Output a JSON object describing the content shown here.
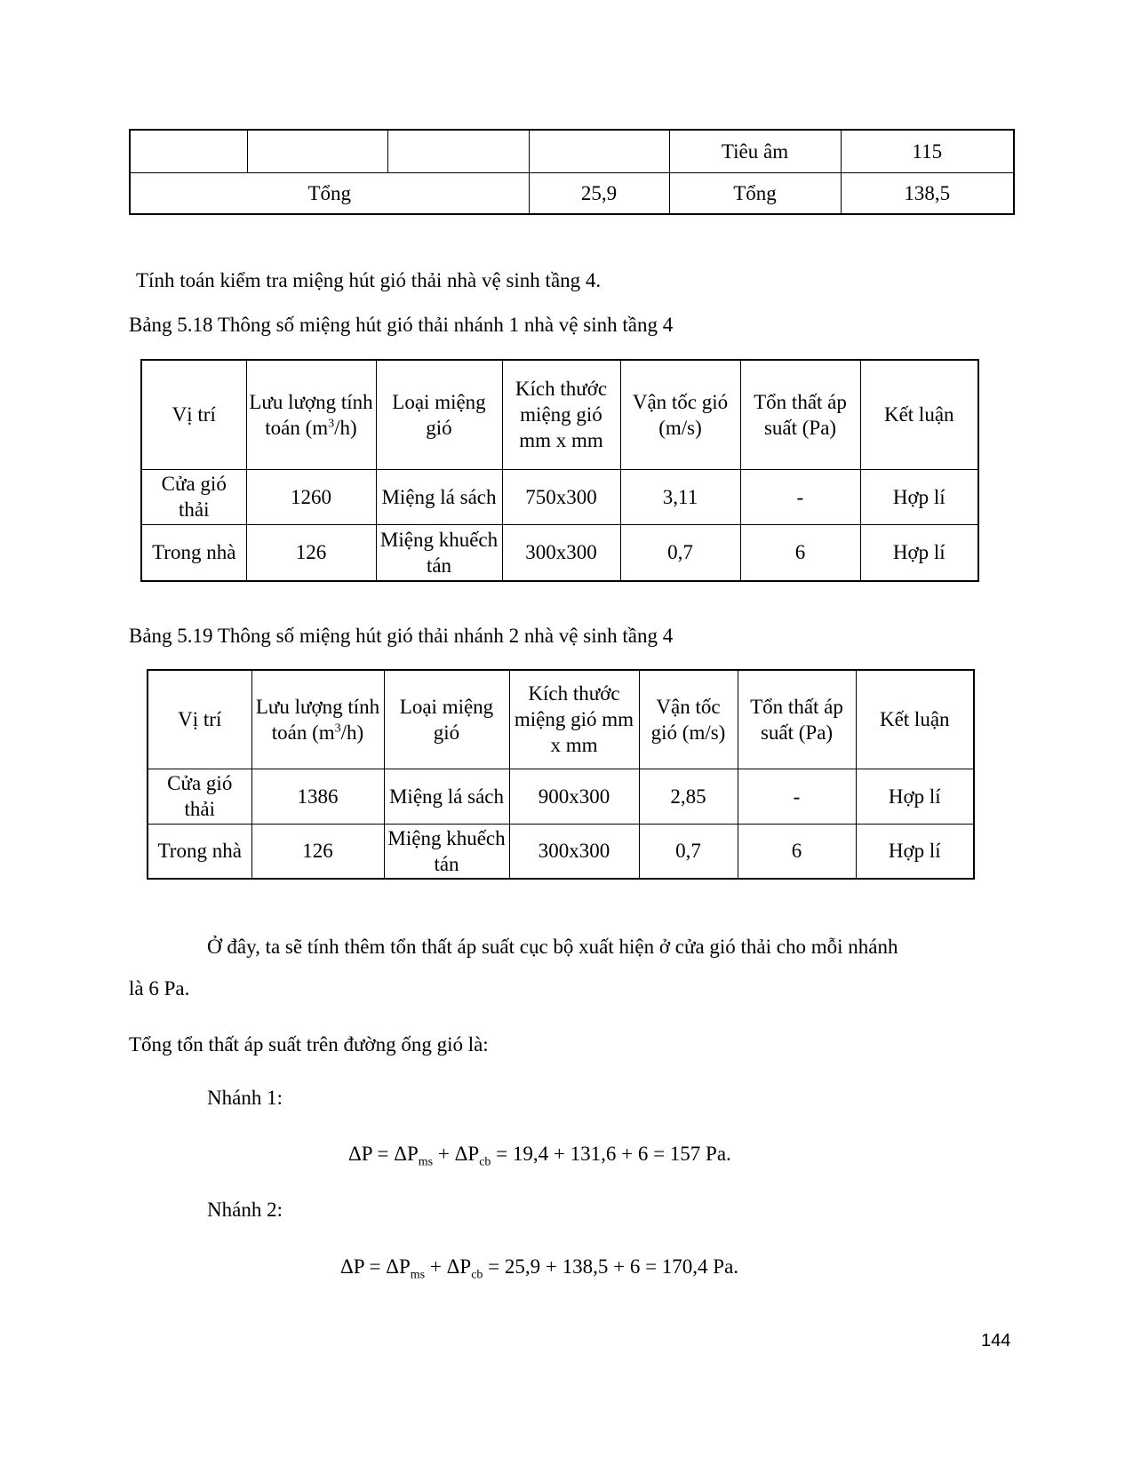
{
  "top_table": {
    "row1": [
      "",
      "",
      "",
      "",
      "Tiêu âm",
      "115"
    ],
    "row2": {
      "label": "Tổng",
      "value1": "25,9",
      "label2": "Tổng",
      "value2": "138,5"
    }
  },
  "intro": "Tính toán kiểm tra miệng hút gió thải nhà vệ sinh tầng 4.",
  "table1": {
    "caption": "Bảng 5.18 Thông số miệng hút gió thải nhánh 1 nhà vệ sinh tầng 4",
    "headers": [
      "Vị trí",
      "Lưu lượng tính toán (m",
      "Loại miệng gió",
      "Kích thước miệng gió mm x mm",
      "Vận tốc gió (m/s)",
      "Tổn thất áp suất (Pa)",
      "Kết luận"
    ],
    "unit_sup": "3",
    "unit_tail": "/h)",
    "rows": [
      [
        "Cửa gió thải",
        "1260",
        "Miệng lá sách",
        "750x300",
        "3,11",
        "-",
        "Hợp lí"
      ],
      [
        "Trong nhà",
        "126",
        "Miệng khuếch tán",
        "300x300",
        "0,7",
        "6",
        "Hợp lí"
      ]
    ]
  },
  "table2": {
    "caption": "Bảng 5.19 Thông số miệng hút gió thải nhánh 2 nhà vệ sinh tầng 4",
    "headers": [
      "Vị trí",
      "Lưu lượng tính toán (m",
      "Loại miệng gió",
      "Kích thước miệng gió mm x mm",
      "Vận tốc gió (m/s)",
      "Tổn thất áp suất (Pa)",
      "Kết luận"
    ],
    "unit_sup": "3",
    "unit_tail": "/h)",
    "rows": [
      [
        "Cửa gió thải",
        "1386",
        "Miệng lá sách",
        "900x300",
        "2,85",
        "-",
        "Hợp lí"
      ],
      [
        "Trong nhà",
        "126",
        "Miệng khuếch tán",
        "300x300",
        "0,7",
        "6",
        "Hợp lí"
      ]
    ]
  },
  "para1_line1": "Ở đây, ta sẽ tính thêm tổn thất áp suất cục bộ xuất hiện ở cửa gió thải cho mỗi nhánh",
  "para1_line2": "là 6 Pa.",
  "para2": "Tổng tổn thất áp suất trên đường ống gió là:",
  "branch1": {
    "label": "Nhánh 1:",
    "f_a": "ΔP = ΔP",
    "sub1": "ms",
    "f_b": " + ΔP",
    "sub2": "cb",
    "f_c": " = 19,4 + 131,6 + 6 = 157 Pa."
  },
  "branch2": {
    "label": "Nhánh 2:",
    "f_a": "ΔP = ΔP",
    "sub1": "ms",
    "f_b": " + ΔP",
    "sub2": "cb",
    "f_c": " = 25,9 + 138,5 + 6 = 170,4 Pa."
  },
  "page_number": "144"
}
